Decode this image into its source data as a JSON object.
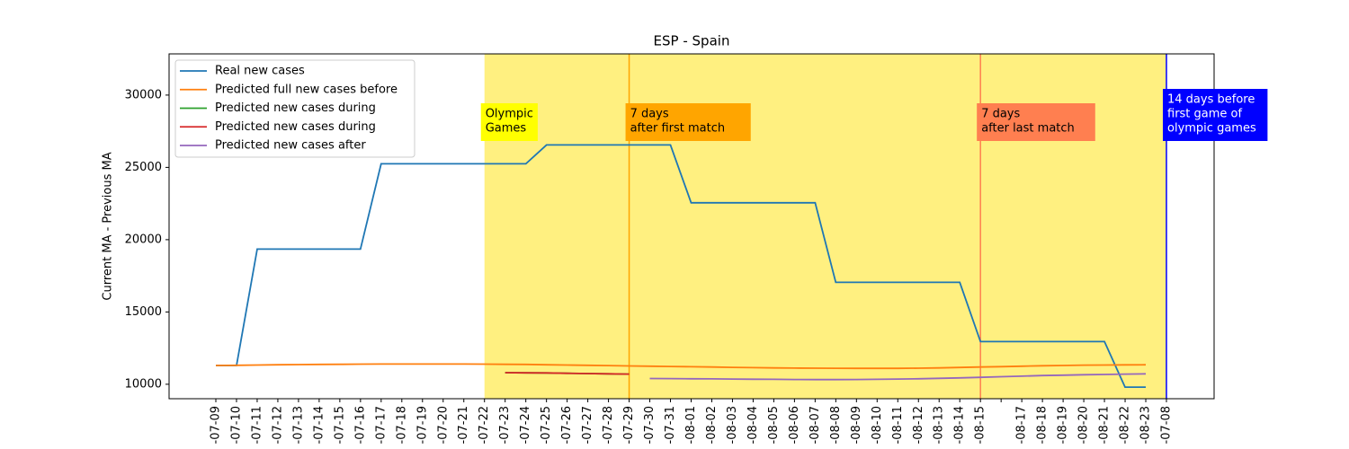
{
  "chart_data": {
    "type": "line",
    "title": "ESP - Spain",
    "ylabel": "Current MA - Previous MA",
    "categories": [
      "-07-09",
      "-07-10",
      "-07-11",
      "-07-12",
      "-07-13",
      "-07-14",
      "-07-15",
      "-07-16",
      "-07-17",
      "-07-18",
      "-07-19",
      "-07-20",
      "-07-21",
      "-07-22",
      "-07-23",
      "-07-24",
      "-07-25",
      "-07-26",
      "-07-27",
      "-07-28",
      "-07-29",
      "-07-30",
      "-07-31",
      "-08-01",
      "-08-02",
      "-08-03",
      "-08-04",
      "-08-05",
      "-08-06",
      "-08-07",
      "-08-08",
      "-08-09",
      "-08-10",
      "-08-11",
      "-08-12",
      "-08-13",
      "-08-14",
      "-08-15",
      null,
      "-08-17",
      "-08-18",
      "-08-19",
      "-08-20",
      "-08-21",
      "-08-22",
      "-08-23",
      "-07-08"
    ],
    "series": [
      {
        "name": "Real new cases",
        "color": "#1f77b4",
        "values": [
          11300,
          11300,
          19350,
          19350,
          19350,
          19350,
          19350,
          19350,
          25250,
          25250,
          25250,
          25250,
          25250,
          25250,
          25250,
          25250,
          26550,
          26550,
          26550,
          26550,
          26550,
          26550,
          26550,
          22550,
          22550,
          22550,
          22550,
          22550,
          22550,
          22550,
          17050,
          17050,
          17050,
          17050,
          17050,
          17050,
          17050,
          12950,
          12950,
          12950,
          12950,
          12950,
          12950,
          12950,
          9800,
          9800,
          null
        ]
      },
      {
        "name": "Predicted full new cases before",
        "color": "#ff7f0e",
        "values": [
          11300,
          11310,
          11330,
          11350,
          11360,
          11370,
          11380,
          11390,
          11395,
          11400,
          11400,
          11400,
          11395,
          11390,
          11380,
          11370,
          11350,
          11330,
          11310,
          11290,
          11270,
          11250,
          11230,
          11210,
          11190,
          11170,
          11150,
          11130,
          11120,
          11110,
          11105,
          11100,
          11100,
          11100,
          11110,
          11130,
          11160,
          11190,
          11220,
          11250,
          11280,
          11300,
          11320,
          11330,
          11340,
          11350,
          null
        ]
      },
      {
        "name": "Predicted new cases during",
        "color": "#2ca02c",
        "values": [
          null,
          null,
          null,
          null,
          null,
          null,
          null,
          null,
          null,
          null,
          null,
          null,
          null,
          null,
          10800,
          10790,
          10780,
          10760,
          10740,
          10720,
          10700,
          null,
          null,
          null,
          null,
          null,
          null,
          null,
          null,
          null,
          null,
          null,
          null,
          null,
          null,
          null,
          null,
          null,
          null,
          null,
          null,
          null,
          null,
          null,
          null,
          null,
          null
        ]
      },
      {
        "name": "Predicted new cases during",
        "color": "#d62728",
        "values": [
          null,
          null,
          null,
          null,
          null,
          null,
          null,
          null,
          null,
          null,
          null,
          null,
          null,
          null,
          10800,
          10790,
          10780,
          10760,
          10740,
          10720,
          10700,
          null,
          null,
          null,
          null,
          null,
          null,
          null,
          null,
          null,
          null,
          null,
          null,
          null,
          null,
          null,
          null,
          null,
          null,
          null,
          null,
          null,
          null,
          null,
          null,
          null,
          null
        ]
      },
      {
        "name": "Predicted new cases after",
        "color": "#9467bd",
        "values": [
          null,
          null,
          null,
          null,
          null,
          null,
          null,
          null,
          null,
          null,
          null,
          null,
          null,
          null,
          null,
          null,
          null,
          null,
          null,
          null,
          null,
          10400,
          10390,
          10380,
          10370,
          10360,
          10350,
          10340,
          10330,
          10320,
          10320,
          10330,
          10340,
          10360,
          10380,
          10410,
          10440,
          10480,
          10520,
          10560,
          10600,
          10630,
          10660,
          10680,
          10700,
          10720,
          null
        ]
      }
    ],
    "ylim": [
      9000,
      32850
    ],
    "yticks": [
      10000,
      15000,
      20000,
      25000,
      30000
    ],
    "legend": "upper left",
    "span": {
      "from": "-07-22",
      "to": "-07-08",
      "color": "#fff080",
      "label": [
        "Olympic",
        "Games"
      ],
      "label_color": "#ffff00",
      "text_color": "#000000"
    },
    "markers": [
      {
        "at": "-07-29",
        "color": "#ffa500",
        "label": [
          "7 days",
          "after first match"
        ],
        "label_color": "#ffa500",
        "text_color": "#000000"
      },
      {
        "at": "-08-15",
        "color": "#ff7f50",
        "label": [
          "7 days",
          "after last match"
        ],
        "label_color": "#ff7f50",
        "text_color": "#000000"
      },
      {
        "at": "-07-08",
        "color": "#0000ff",
        "label": [
          "14 days before",
          "first game of",
          "olympic games"
        ],
        "label_color": "#0000ff",
        "text_color": "#ffffff"
      }
    ]
  }
}
